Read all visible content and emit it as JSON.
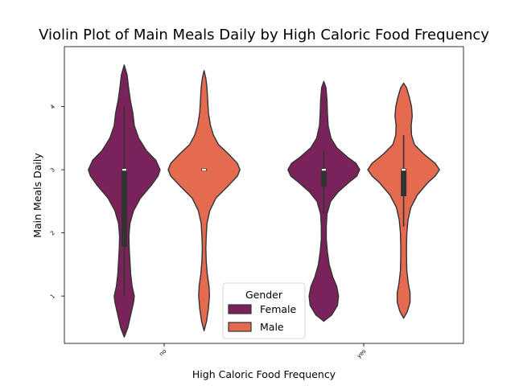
{
  "chart_data": {
    "type": "violin",
    "title": "Violin Plot of Main Meals Daily by High Caloric Food Frequency",
    "xlabel": "High Caloric Food Frequency",
    "ylabel": "Main Meals Daily",
    "categories": [
      "no",
      "yes"
    ],
    "yticks": [
      1,
      2,
      3,
      4
    ],
    "ylim": [
      0.25,
      4.95
    ],
    "grid": false,
    "legend": {
      "title": "Gender",
      "placement": "lower-center"
    },
    "series": [
      {
        "name": "Female",
        "color": "#7a235a",
        "violins": [
          {
            "category": "no",
            "box": {
              "q1": 1.8,
              "median": 3.0,
              "q3": 3.0,
              "whisker_low": 1.0,
              "whisker_high": 4.0
            },
            "density": [
              [
                0.35,
                0.0
              ],
              [
                0.5,
                0.1
              ],
              [
                0.7,
                0.18
              ],
              [
                0.9,
                0.26
              ],
              [
                1.0,
                0.28
              ],
              [
                1.15,
                0.22
              ],
              [
                1.35,
                0.18
              ],
              [
                1.55,
                0.16
              ],
              [
                1.75,
                0.14
              ],
              [
                1.95,
                0.13
              ],
              [
                2.15,
                0.16
              ],
              [
                2.35,
                0.26
              ],
              [
                2.55,
                0.45
              ],
              [
                2.75,
                0.75
              ],
              [
                2.9,
                0.94
              ],
              [
                3.0,
                1.0
              ],
              [
                3.15,
                0.88
              ],
              [
                3.3,
                0.62
              ],
              [
                3.5,
                0.4
              ],
              [
                3.7,
                0.28
              ],
              [
                3.9,
                0.24
              ],
              [
                4.1,
                0.17
              ],
              [
                4.3,
                0.12
              ],
              [
                4.5,
                0.08
              ],
              [
                4.66,
                0.0
              ]
            ]
          },
          {
            "category": "yes",
            "box": {
              "q1": 2.75,
              "median": 3.0,
              "q3": 3.0,
              "whisker_low": 2.3,
              "whisker_high": 3.3
            },
            "density": [
              [
                0.6,
                0.0
              ],
              [
                0.7,
                0.22
              ],
              [
                0.85,
                0.38
              ],
              [
                1.0,
                0.41
              ],
              [
                1.15,
                0.36
              ],
              [
                1.3,
                0.25
              ],
              [
                1.5,
                0.15
              ],
              [
                1.7,
                0.1
              ],
              [
                1.9,
                0.07
              ],
              [
                2.1,
                0.07
              ],
              [
                2.3,
                0.09
              ],
              [
                2.5,
                0.19
              ],
              [
                2.65,
                0.4
              ],
              [
                2.8,
                0.7
              ],
              [
                2.9,
                0.92
              ],
              [
                3.0,
                1.0
              ],
              [
                3.1,
                0.9
              ],
              [
                3.2,
                0.66
              ],
              [
                3.35,
                0.36
              ],
              [
                3.5,
                0.2
              ],
              [
                3.7,
                0.12
              ],
              [
                3.9,
                0.1
              ],
              [
                4.1,
                0.09
              ],
              [
                4.3,
                0.06
              ],
              [
                4.4,
                0.0
              ]
            ]
          }
        ]
      },
      {
        "name": "Male",
        "color": "#e46a50",
        "violins": [
          {
            "category": "no",
            "box": {
              "q1": 3.0,
              "median": 3.0,
              "q3": 3.0,
              "whisker_low": 3.0,
              "whisker_high": 3.0
            },
            "density": [
              [
                0.45,
                0.0
              ],
              [
                0.6,
                0.07
              ],
              [
                0.8,
                0.12
              ],
              [
                1.0,
                0.15
              ],
              [
                1.15,
                0.14
              ],
              [
                1.35,
                0.09
              ],
              [
                1.55,
                0.06
              ],
              [
                1.75,
                0.05
              ],
              [
                1.95,
                0.06
              ],
              [
                2.15,
                0.08
              ],
              [
                2.35,
                0.16
              ],
              [
                2.55,
                0.33
              ],
              [
                2.75,
                0.68
              ],
              [
                2.9,
                0.93
              ],
              [
                3.0,
                1.0
              ],
              [
                3.1,
                0.93
              ],
              [
                3.25,
                0.68
              ],
              [
                3.4,
                0.4
              ],
              [
                3.55,
                0.26
              ],
              [
                3.7,
                0.18
              ],
              [
                3.9,
                0.12
              ],
              [
                4.1,
                0.1
              ],
              [
                4.3,
                0.08
              ],
              [
                4.45,
                0.05
              ],
              [
                4.57,
                0.0
              ]
            ]
          },
          {
            "category": "yes",
            "box": {
              "q1": 2.6,
              "median": 3.0,
              "q3": 3.0,
              "whisker_low": 2.1,
              "whisker_high": 3.55
            },
            "density": [
              [
                0.65,
                0.0
              ],
              [
                0.75,
                0.1
              ],
              [
                0.9,
                0.18
              ],
              [
                1.05,
                0.18
              ],
              [
                1.2,
                0.13
              ],
              [
                1.4,
                0.09
              ],
              [
                1.6,
                0.08
              ],
              [
                1.8,
                0.08
              ],
              [
                2.0,
                0.09
              ],
              [
                2.2,
                0.12
              ],
              [
                2.4,
                0.2
              ],
              [
                2.6,
                0.38
              ],
              [
                2.8,
                0.68
              ],
              [
                2.9,
                0.88
              ],
              [
                3.0,
                1.0
              ],
              [
                3.1,
                0.88
              ],
              [
                3.25,
                0.56
              ],
              [
                3.4,
                0.3
              ],
              [
                3.55,
                0.22
              ],
              [
                3.7,
                0.21
              ],
              [
                3.85,
                0.24
              ],
              [
                4.0,
                0.22
              ],
              [
                4.15,
                0.16
              ],
              [
                4.3,
                0.08
              ],
              [
                4.37,
                0.0
              ]
            ]
          }
        ]
      }
    ]
  }
}
